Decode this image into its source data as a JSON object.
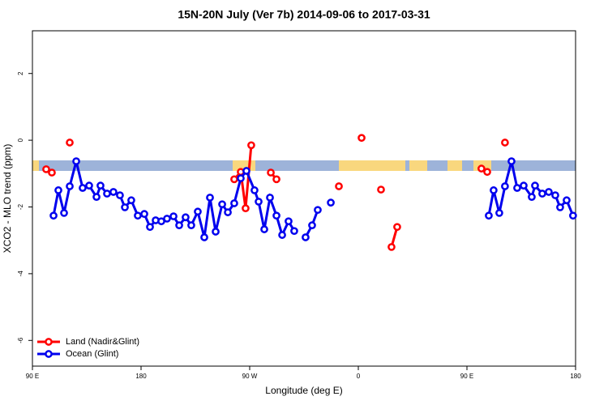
{
  "chart_data": {
    "type": "line",
    "title": "15N-20N July (Ver 7b)   2014-09-06 to 2017-03-31",
    "x_label": "Longitude (deg E)",
    "y_label": "XCO2 - MLO trend (ppm)",
    "xlim": [
      90,
      540
    ],
    "ylim": [
      -6.77,
      3.28
    ],
    "xticks": [
      {
        "value": 90,
        "label": "90 E"
      },
      {
        "value": 180,
        "label": "180"
      },
      {
        "value": 270,
        "label": "90 W"
      },
      {
        "value": 360,
        "label": "0"
      },
      {
        "value": 450,
        "label": "90 E"
      },
      {
        "value": 540,
        "label": "180"
      }
    ],
    "yticks": [
      -6,
      -4,
      -2,
      0,
      2
    ],
    "legend": "bottom-left",
    "series": [
      {
        "name": "Land (Nadir&Glint)",
        "color": "#ff0000",
        "x": [
          101.4,
          106.1,
          null,
          120.9,
          null,
          257.2,
          262.6,
          266.6,
          271.3,
          null,
          287.5,
          292.2,
          null,
          343.9,
          null,
          362.7,
          null,
          378.8,
          null,
          387.5,
          392.2,
          null,
          462.0,
          466.8,
          null,
          481.5
        ],
        "values": [
          -0.87,
          -0.97,
          null,
          -0.07,
          null,
          -1.17,
          -0.95,
          -2.04,
          -0.15,
          null,
          -0.97,
          -1.17,
          null,
          -1.38,
          null,
          0.07,
          null,
          -1.48,
          null,
          -3.2,
          -2.6,
          null,
          -0.85,
          -0.95,
          null,
          -0.07
        ]
      },
      {
        "name": "Ocean (Glint)",
        "color": "#0000ee",
        "x": [
          107.5,
          111.5,
          116.2,
          120.9,
          126.3,
          131.6,
          137.0,
          143.1,
          146.4,
          151.8,
          157.1,
          162.5,
          166.6,
          171.9,
          177.3,
          182.7,
          187.4,
          192.1,
          196.8,
          201.5,
          206.9,
          211.6,
          216.9,
          221.6,
          227.0,
          232.4,
          237.1,
          241.8,
          247.2,
          251.9,
          257.2,
          262.6,
          267.3,
          274.0,
          277.4,
          282.1,
          286.8,
          292.2,
          296.9,
          302.2,
          306.9,
          null,
          316.3,
          321.7,
          326.4,
          null,
          337.2,
          null,
          468.1,
          472.1,
          476.8,
          481.5,
          486.9,
          491.6,
          497.0,
          503.7,
          506.4,
          512.4,
          517.8,
          523.2,
          527.2,
          532.6,
          537.9
        ],
        "values": [
          -2.26,
          -1.5,
          -2.18,
          -1.38,
          -0.63,
          -1.43,
          -1.36,
          -1.7,
          -1.36,
          -1.6,
          -1.55,
          -1.65,
          -2.01,
          -1.8,
          -2.26,
          -2.21,
          -2.6,
          -2.4,
          -2.43,
          -2.35,
          -2.28,
          -2.55,
          -2.31,
          -2.55,
          -2.14,
          -2.91,
          -1.72,
          -2.74,
          -1.92,
          -2.16,
          -1.89,
          -1.14,
          -0.92,
          -1.5,
          -1.84,
          -2.67,
          -1.72,
          -2.26,
          -2.84,
          -2.43,
          -2.72,
          null,
          -2.91,
          -2.55,
          -2.09,
          null,
          -1.87,
          null,
          -2.26,
          -1.5,
          -2.18,
          -1.38,
          -0.63,
          -1.43,
          -1.36,
          -1.7,
          -1.36,
          -1.6,
          -1.55,
          -1.65,
          -2.01,
          -1.8,
          -2.26
        ]
      }
    ]
  }
}
